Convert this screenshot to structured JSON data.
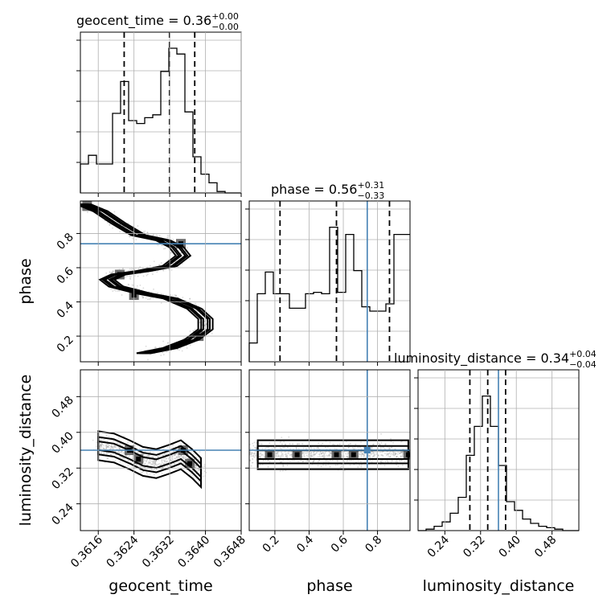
{
  "chart_data": {
    "type": "corner",
    "parameters": [
      "geocent_time",
      "phase",
      "luminosity_distance"
    ],
    "truth_color": "#4682b4",
    "truths": {
      "geocent_time": null,
      "phase": 0.74,
      "luminosity_distance": 0.36
    },
    "ranges": {
      "geocent_time": [
        0.3612,
        0.3648
      ],
      "phase": [
        0.05,
        0.99
      ],
      "luminosity_distance": [
        0.18,
        0.54
      ]
    },
    "titles": [
      {
        "param": "geocent_time",
        "main": "geocent_time = 0.36",
        "plus": "+0.00",
        "minus": "−0.00"
      },
      {
        "param": "phase",
        "main": "phase = 0.56",
        "plus": "+0.31",
        "minus": "−0.33"
      },
      {
        "param": "luminosity_distance",
        "main": "luminosity_distance = 0.34",
        "plus": "+0.04",
        "minus": "−0.04"
      }
    ],
    "axis_labels": {
      "x": [
        "geocent_time",
        "phase",
        "luminosity_distance"
      ],
      "y": [
        "phase",
        "luminosity_distance"
      ]
    },
    "ticks": {
      "geocent_time": {
        "values": [
          0.3616,
          0.3624,
          0.3632,
          0.364,
          0.3648
        ],
        "labels": [
          "0.3616",
          "0.3624",
          "0.3632",
          "0.3640",
          "0.3648"
        ]
      },
      "phase": {
        "values": [
          0.2,
          0.4,
          0.6,
          0.8
        ],
        "labels": [
          "0.2",
          "0.4",
          "0.6",
          "0.8"
        ]
      },
      "luminosity_distance": {
        "values": [
          0.24,
          0.32,
          0.4,
          0.48
        ],
        "labels": [
          "0.24",
          "0.32",
          "0.40",
          "0.48"
        ]
      }
    },
    "histograms": [
      {
        "param": "geocent_time",
        "bin_edges": [
          0.3612,
          0.36138,
          0.36156,
          0.36174,
          0.36192,
          0.3621,
          0.36228,
          0.36246,
          0.36264,
          0.36282,
          0.363,
          0.36318,
          0.36336,
          0.36354,
          0.36372,
          0.3639,
          0.36408,
          0.36426,
          0.36444,
          0.36462,
          0.3648
        ],
        "counts": [
          0.2,
          0.26,
          0.2,
          0.2,
          0.55,
          0.77,
          0.5,
          0.48,
          0.52,
          0.54,
          0.84,
          1.0,
          0.96,
          0.56,
          0.25,
          0.13,
          0.07,
          0.01,
          0.0,
          0.0
        ],
        "quantiles": [
          0.36218,
          0.363195,
          0.36376
        ]
      },
      {
        "param": "phase",
        "bin_edges": [
          0.05,
          0.097,
          0.144,
          0.191,
          0.238,
          0.285,
          0.332,
          0.379,
          0.426,
          0.473,
          0.52,
          0.567,
          0.614,
          0.661,
          0.708,
          0.755,
          0.802,
          0.849,
          0.896,
          0.943,
          0.99
        ],
        "counts": [
          0.13,
          0.47,
          0.62,
          0.47,
          0.47,
          0.37,
          0.37,
          0.47,
          0.48,
          0.47,
          0.93,
          0.48,
          0.88,
          0.63,
          0.38,
          0.35,
          0.35,
          0.4,
          0.88,
          0.88
        ],
        "quantiles": [
          0.23,
          0.56,
          0.87
        ]
      },
      {
        "param": "luminosity_distance",
        "bin_edges": [
          0.18,
          0.198,
          0.216,
          0.234,
          0.252,
          0.27,
          0.288,
          0.306,
          0.324,
          0.342,
          0.36,
          0.378,
          0.396,
          0.414,
          0.432,
          0.45,
          0.468,
          0.486,
          0.504,
          0.522,
          0.54
        ],
        "counts": [
          0.0,
          0.01,
          0.03,
          0.06,
          0.12,
          0.23,
          0.52,
          0.72,
          0.93,
          0.72,
          0.45,
          0.2,
          0.14,
          0.08,
          0.05,
          0.03,
          0.02,
          0.01,
          0.0,
          0.0
        ],
        "quantiles": [
          0.296,
          0.336,
          0.376
        ]
      }
    ],
    "scatter_2d": [
      {
        "x": "geocent_time",
        "y": "phase",
        "ridge_points": [
          [
            0.36128,
            0.97
          ],
          [
            0.36165,
            0.93
          ],
          [
            0.36205,
            0.86
          ],
          [
            0.3625,
            0.79
          ],
          [
            0.36305,
            0.76
          ],
          [
            0.36335,
            0.72
          ],
          [
            0.3635,
            0.67
          ],
          [
            0.3632,
            0.61
          ],
          [
            0.3626,
            0.58
          ],
          [
            0.36205,
            0.56
          ],
          [
            0.3618,
            0.53
          ],
          [
            0.362,
            0.49
          ],
          [
            0.3626,
            0.45
          ],
          [
            0.36322,
            0.42
          ],
          [
            0.36375,
            0.36
          ],
          [
            0.364,
            0.3
          ],
          [
            0.364,
            0.24
          ],
          [
            0.3637,
            0.18
          ],
          [
            0.3632,
            0.13
          ],
          [
            0.36262,
            0.1
          ]
        ],
        "dense_cores": [
          [
            0.36135,
            0.96
          ],
          [
            0.36345,
            0.74
          ],
          [
            0.36208,
            0.56
          ],
          [
            0.3624,
            0.44
          ],
          [
            0.36385,
            0.2
          ]
        ]
      },
      {
        "x": "geocent_time",
        "y": "luminosity_distance",
        "ridge_points": [
          [
            0.3616,
            0.37
          ],
          [
            0.36195,
            0.365
          ],
          [
            0.3623,
            0.35
          ],
          [
            0.3626,
            0.335
          ],
          [
            0.3629,
            0.33
          ],
          [
            0.3632,
            0.34
          ],
          [
            0.36345,
            0.35
          ],
          [
            0.3637,
            0.33
          ],
          [
            0.3639,
            0.31
          ]
        ],
        "dense_cores": [
          [
            0.3623,
            0.36
          ],
          [
            0.3625,
            0.34
          ],
          [
            0.3635,
            0.36
          ],
          [
            0.36365,
            0.33
          ]
        ]
      },
      {
        "x": "phase",
        "y": "luminosity_distance",
        "ridge_points": [
          [
            0.1,
            0.35
          ],
          [
            0.2,
            0.35
          ],
          [
            0.33,
            0.35
          ],
          [
            0.45,
            0.35
          ],
          [
            0.56,
            0.35
          ],
          [
            0.68,
            0.35
          ],
          [
            0.78,
            0.35
          ],
          [
            0.88,
            0.35
          ],
          [
            0.98,
            0.35
          ]
        ],
        "dense_cores": [
          [
            0.17,
            0.35
          ],
          [
            0.33,
            0.35
          ],
          [
            0.56,
            0.35
          ],
          [
            0.66,
            0.35
          ],
          [
            0.98,
            0.35
          ]
        ]
      }
    ]
  }
}
